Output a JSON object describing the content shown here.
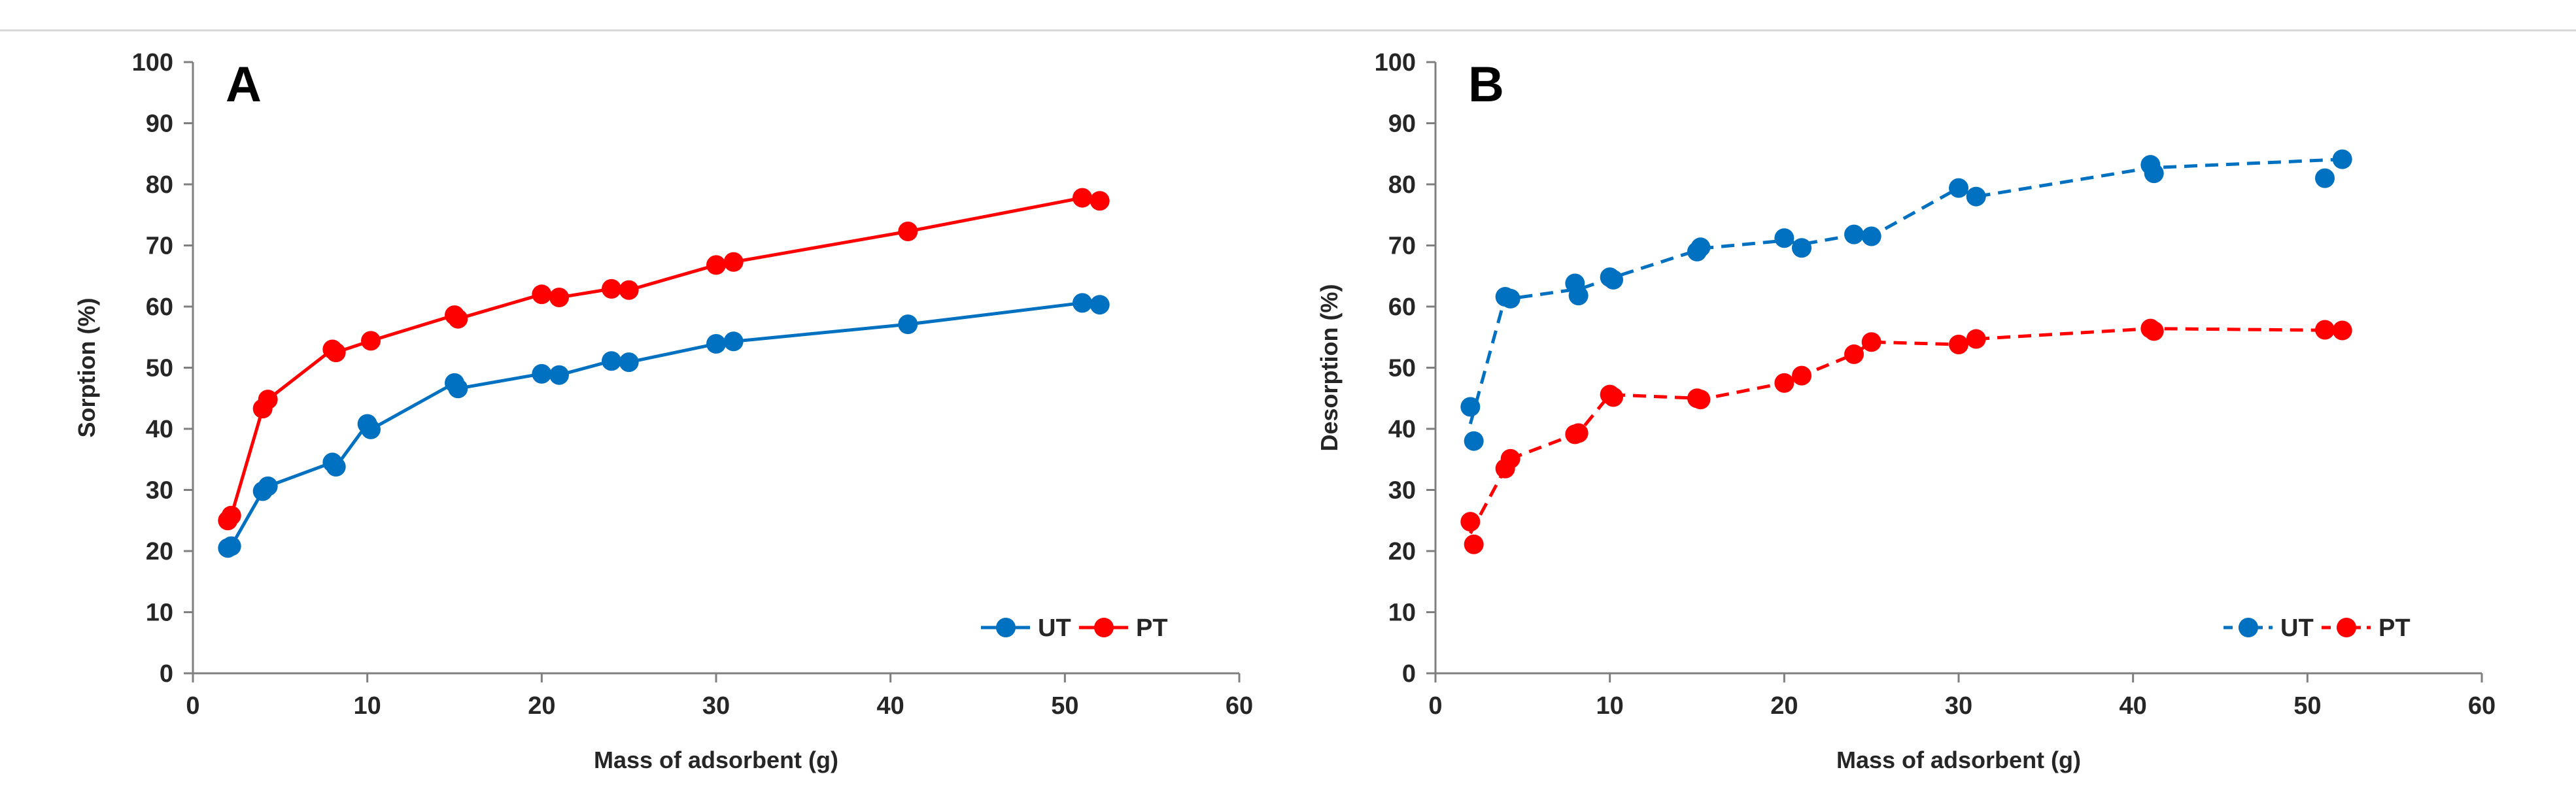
{
  "colors": {
    "UT": "#0070c0",
    "PT": "#ff0000",
    "axis": "#7f7f7f",
    "text": "#262626"
  },
  "chart_data": [
    {
      "type": "line",
      "panel": "A",
      "title": "",
      "xlabel": "Mass of adsorbent (g)",
      "ylabel": "Sorption (%)",
      "xlim": [
        0,
        60
      ],
      "ylim": [
        0,
        100
      ],
      "xticks": [
        0,
        10,
        20,
        30,
        40,
        50,
        60
      ],
      "yticks": [
        0,
        10,
        20,
        30,
        40,
        50,
        60,
        70,
        80,
        90,
        100
      ],
      "grid": false,
      "legend_position": "bottom-right",
      "series": [
        {
          "name": "UT",
          "line_style": "solid",
          "x": [
            2,
            2.2,
            4,
            4.3,
            8,
            8.2,
            10,
            10.2,
            15,
            15.2,
            20,
            21,
            24,
            25,
            30,
            31,
            41,
            51,
            52
          ],
          "y": [
            20.5,
            20.8,
            29.8,
            30.6,
            34.5,
            33.8,
            40.8,
            39.9,
            47.5,
            46.6,
            49,
            48.8,
            51.1,
            50.9,
            53.9,
            54.3,
            57.1,
            60.6,
            60.3
          ]
        },
        {
          "name": "PT",
          "line_style": "solid",
          "x": [
            2,
            2.2,
            4,
            4.3,
            8,
            8.2,
            10.2,
            15,
            15.2,
            20,
            21,
            24,
            25,
            30,
            31,
            41,
            51,
            52
          ],
          "y": [
            25,
            25.8,
            43.3,
            44.8,
            53,
            52.5,
            54.4,
            58.6,
            58,
            62,
            61.5,
            62.9,
            62.7,
            66.8,
            67.3,
            72.3,
            77.8,
            77.3
          ]
        }
      ]
    },
    {
      "type": "line",
      "panel": "B",
      "title": "",
      "xlabel": "Mass of adsorbent (g)",
      "ylabel": "Desorption (%)",
      "xlim": [
        0,
        60
      ],
      "ylim": [
        0,
        100
      ],
      "xticks": [
        0,
        10,
        20,
        30,
        40,
        50,
        60
      ],
      "yticks": [
        0,
        10,
        20,
        30,
        40,
        50,
        60,
        70,
        80,
        90,
        100
      ],
      "grid": false,
      "legend_position": "bottom-right",
      "series": [
        {
          "name": "UT",
          "line_style": "dashed",
          "x": [
            2,
            2.2,
            4,
            4.3,
            8,
            8.2,
            10,
            10.2,
            15,
            15.2,
            20,
            21,
            24,
            25,
            30,
            31,
            41,
            41.2,
            51,
            52
          ],
          "y": [
            43.6,
            38,
            61.6,
            61.3,
            63.8,
            61.8,
            64.8,
            64.4,
            69,
            69.7,
            71.2,
            69.6,
            71.8,
            71.5,
            79.4,
            78,
            83.2,
            81.8,
            81,
            84.1
          ],
          "line_x": [
            2,
            4,
            4.3,
            8,
            8.2,
            10,
            15,
            15.2,
            20,
            21,
            24,
            25,
            30,
            31,
            41,
            52
          ],
          "line_y": [
            40.8,
            61.6,
            61.3,
            62.8,
            62.8,
            64.6,
            69.2,
            69.5,
            70.8,
            70.2,
            71.7,
            71.5,
            79.4,
            78,
            82.7,
            84.1
          ]
        },
        {
          "name": "PT",
          "line_style": "dashed",
          "x": [
            2,
            2.2,
            4,
            4.3,
            8,
            8.2,
            10,
            10.2,
            15,
            15.2,
            20,
            21,
            24,
            25,
            30,
            31,
            41,
            41.2,
            51,
            52
          ],
          "y": [
            24.8,
            21.1,
            33.5,
            35.1,
            39.1,
            39.3,
            45.6,
            45.2,
            45,
            44.8,
            47.5,
            48.7,
            52.2,
            54.2,
            53.8,
            54.7,
            56.4,
            56,
            56.2,
            56.1
          ],
          "line_x": [
            2,
            4,
            4.3,
            8,
            8.2,
            10,
            15,
            15.2,
            20,
            21,
            24,
            25,
            30,
            31,
            41,
            52
          ],
          "line_y": [
            22.9,
            33.5,
            35.1,
            39.1,
            39.3,
            45.6,
            45,
            44.8,
            47.5,
            48.7,
            52.2,
            54.2,
            53.8,
            54.7,
            56.4,
            56.1
          ]
        }
      ]
    }
  ]
}
